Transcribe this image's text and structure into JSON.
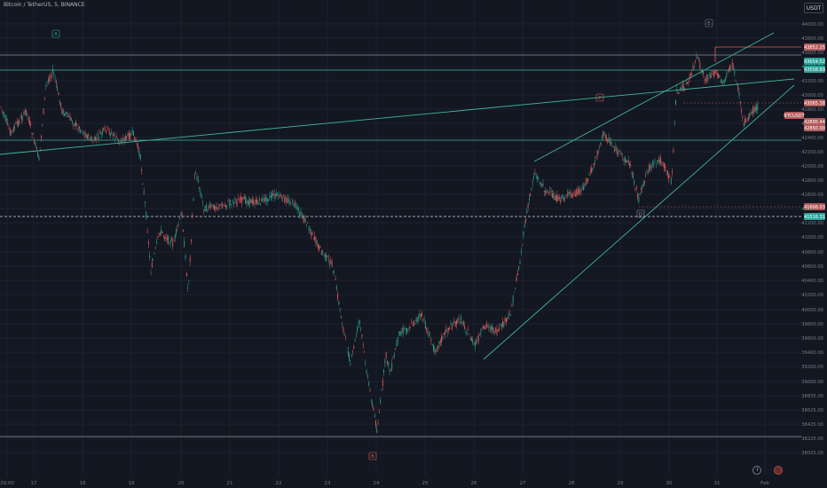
{
  "header": {
    "title": "Bitcoin / TetherUS, 5, BINANCE",
    "currency_button": "USDT"
  },
  "colors": {
    "background": "#131722",
    "grid": "#1e222d",
    "axis_text": "#787b86",
    "up": "#2e9f88",
    "down": "#e05b5b",
    "trendline": "#3fb59b",
    "label_red": "#b15b5b",
    "label_green": "#26a69a"
  },
  "price_axis": {
    "ticks": [
      "44000.00",
      "43800.00",
      "43600.00",
      "43400.00",
      "43200.00",
      "43000.00",
      "42800.00",
      "42600.00",
      "42400.00",
      "42200.00",
      "42000.00",
      "41800.00",
      "41600.00",
      "41400.00",
      "41200.00",
      "41000.00",
      "40800.00",
      "40600.00",
      "40400.00",
      "40200.00",
      "40000.00",
      "39800.00",
      "39600.00",
      "39400.00",
      "39200.00",
      "39000.00",
      "38835.00",
      "38625.00",
      "38425.00",
      "38225.00",
      "38025.00"
    ],
    "labels": [
      {
        "text": "43852.25",
        "style": "red"
      },
      {
        "text": "43654.52",
        "style": "green"
      },
      {
        "text": "43558.89",
        "style": "green"
      },
      {
        "text": "43065.38",
        "style": "red"
      },
      {
        "text": "BTCUSDT",
        "style": "red"
      },
      {
        "text": "42895.44",
        "style": "red"
      },
      {
        "text": "42850.00",
        "style": "red"
      },
      {
        "text": "41666.03",
        "style": "red"
      },
      {
        "text": "41516.31",
        "style": "green"
      }
    ]
  },
  "time_axis": {
    "ticks": [
      "29:00",
      "17",
      "18",
      "19",
      "20",
      "21",
      "22",
      "23",
      "24",
      "25",
      "26",
      "27",
      "28",
      "29",
      "30",
      "31",
      "Feb"
    ]
  },
  "wave_labels": [
    "A",
    "B",
    "C",
    "D",
    "E"
  ]
}
